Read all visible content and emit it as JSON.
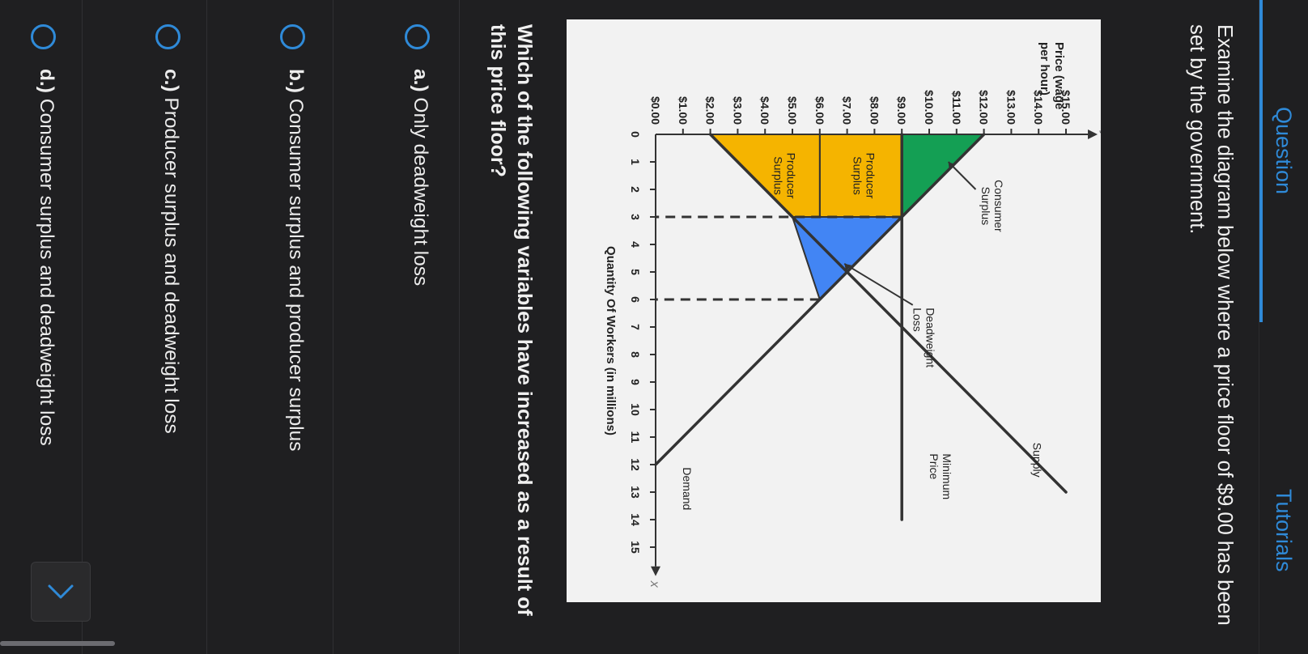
{
  "tabs": [
    {
      "label": "Question",
      "active": true
    },
    {
      "label": "Tutorials",
      "active": false
    }
  ],
  "question": {
    "text": "Examine the diagram below where a price floor of $9.00 has been set by the government.",
    "prompt": "Which of the following variables have increased as a result of this price floor?"
  },
  "chart_data": {
    "type": "area",
    "ylabel": "Price (wage per hour)",
    "xlabel": "Quantity Of Workers (in millions)",
    "y_axis_letter": "y",
    "x_axis_letter": "x",
    "xlim": [
      0,
      15
    ],
    "ylim": [
      0,
      15
    ],
    "x_ticks": [
      "0",
      "1",
      "2",
      "3",
      "4",
      "5",
      "6",
      "7",
      "8",
      "9",
      "10",
      "11",
      "12",
      "13",
      "14",
      "15"
    ],
    "y_ticks": [
      "$0.00",
      "$1.00",
      "$2.00",
      "$3.00",
      "$4.00",
      "$5.00",
      "$6.00",
      "$7.00",
      "$8.00",
      "$9.00",
      "$10.00",
      "$11.00",
      "$12.00",
      "$13.00",
      "$14.00",
      "$15.00"
    ],
    "lines": [
      {
        "name": "Demand",
        "points": [
          [
            0,
            12
          ],
          [
            12,
            0
          ]
        ]
      },
      {
        "name": "Supply",
        "points": [
          [
            0,
            2
          ],
          [
            13,
            15
          ]
        ]
      },
      {
        "name": "Minimum Price",
        "points": [
          [
            0,
            9
          ],
          [
            14,
            9
          ]
        ]
      }
    ],
    "regions": [
      {
        "label": "Consumer Surplus",
        "color": "#149f54",
        "points": [
          [
            0,
            9
          ],
          [
            0,
            12
          ],
          [
            3,
            9
          ]
        ]
      },
      {
        "label": "Producer Surplus",
        "color": "#f5b400",
        "points": [
          [
            0,
            6
          ],
          [
            0,
            9
          ],
          [
            3,
            9
          ],
          [
            3,
            6
          ]
        ]
      },
      {
        "label": "Producer Surplus",
        "color": "#f5b400",
        "points": [
          [
            0,
            2
          ],
          [
            0,
            6
          ],
          [
            3,
            6
          ],
          [
            3,
            5
          ]
        ]
      },
      {
        "label": "Deadweight Loss",
        "color": "#4285f4",
        "points": [
          [
            3,
            9
          ],
          [
            6,
            6
          ],
          [
            3,
            5
          ]
        ]
      }
    ],
    "dashed": [
      {
        "x": 3,
        "y": 9
      },
      {
        "x": 6,
        "y": 6
      }
    ],
    "annotations": {
      "consumer_surplus": "Consumer Surplus",
      "producer_surplus_1": "Producer Surplus",
      "producer_surplus_2": "Producer Surplus",
      "deadweight_loss": "Deadweight Loss",
      "supply": "Supply",
      "minimum_price": "Minimum Price",
      "demand": "Demand"
    },
    "grid": false,
    "legend": "none"
  },
  "options": [
    {
      "letter": "a.)",
      "text": "Only deadweight loss"
    },
    {
      "letter": "b.)",
      "text": "Consumer surplus and producer surplus"
    },
    {
      "letter": "c.)",
      "text": "Producer surplus and deadweight loss"
    },
    {
      "letter": "d.)",
      "text": "Consumer surplus and deadweight loss"
    }
  ],
  "next_icon": "chevron-right-icon",
  "colors": {
    "accent": "#2f8ad8",
    "background": "#1f1f21"
  }
}
